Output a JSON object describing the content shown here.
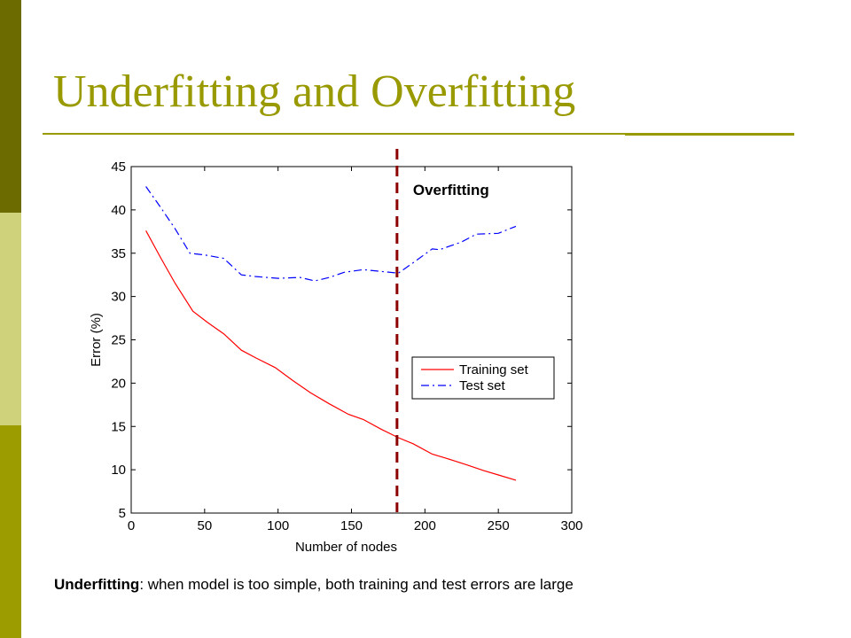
{
  "slide": {
    "title": "Underfitting and Overfitting",
    "caption_term": "Underfitting",
    "caption_rest": ": when model is too simple, both training and test errors are large",
    "theme_colors": {
      "dark": "#6b6b00",
      "light": "#cfd27a",
      "olive": "#9c9c00",
      "title": "#999900"
    }
  },
  "chart_data": {
    "type": "line",
    "xlabel": "Number of nodes",
    "ylabel": "Error (%)",
    "xlim": [
      0,
      300
    ],
    "ylim": [
      5,
      45
    ],
    "xticks": [
      0,
      50,
      100,
      150,
      200,
      250,
      300
    ],
    "yticks": [
      5,
      10,
      15,
      20,
      25,
      30,
      35,
      40,
      45
    ],
    "grid": false,
    "legend_position": "lower-right",
    "series": [
      {
        "name": "Training set",
        "color": "#ff0000",
        "style": "solid",
        "x": [
          10,
          20,
          30,
          42,
          52,
          63,
          75,
          85,
          98,
          110,
          122,
          135,
          148,
          158,
          170,
          182,
          192,
          205,
          215,
          228,
          240,
          250,
          262
        ],
        "y": [
          37.6,
          34.5,
          31.5,
          28.3,
          27.0,
          25.7,
          23.8,
          22.9,
          21.8,
          20.3,
          18.9,
          17.6,
          16.4,
          15.8,
          14.7,
          13.7,
          13.0,
          11.8,
          11.3,
          10.6,
          9.9,
          9.4,
          8.8
        ]
      },
      {
        "name": "Test set",
        "color": "#0000ff",
        "style": "dashdot",
        "x": [
          10,
          20,
          30,
          40,
          50,
          63,
          75,
          85,
          100,
          115,
          125,
          135,
          145,
          158,
          170,
          182,
          192,
          205,
          210,
          225,
          235,
          250,
          262
        ],
        "y": [
          42.7,
          40.3,
          37.8,
          35.0,
          34.8,
          34.4,
          32.5,
          32.3,
          32.1,
          32.2,
          31.8,
          32.2,
          32.8,
          33.1,
          32.9,
          32.7,
          33.9,
          35.5,
          35.4,
          36.3,
          37.2,
          37.3,
          38.1
        ]
      }
    ],
    "annotation": {
      "label": "Overfitting",
      "x": 181,
      "line_color": "#8b0000"
    }
  }
}
